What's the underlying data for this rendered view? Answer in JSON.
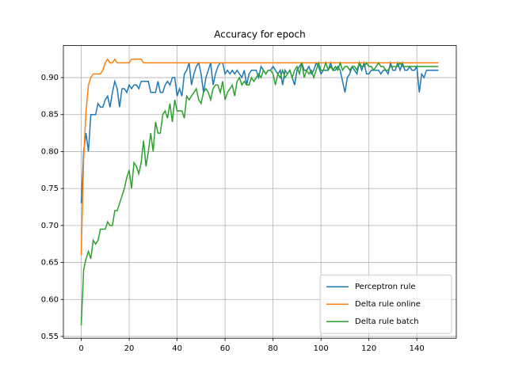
{
  "chart_data": {
    "type": "line",
    "title": "Accuracy for epoch",
    "x": [
      0,
      1,
      2,
      3,
      4,
      5,
      6,
      7,
      8,
      9,
      10,
      11,
      12,
      13,
      14,
      15,
      16,
      17,
      18,
      19,
      20,
      21,
      22,
      23,
      24,
      25,
      26,
      27,
      28,
      29,
      30,
      31,
      32,
      33,
      34,
      35,
      36,
      37,
      38,
      39,
      40,
      41,
      42,
      43,
      44,
      45,
      46,
      47,
      48,
      49,
      50,
      51,
      52,
      53,
      54,
      55,
      56,
      57,
      58,
      59,
      60,
      61,
      62,
      63,
      64,
      65,
      66,
      67,
      68,
      69,
      70,
      71,
      72,
      73,
      74,
      75,
      76,
      77,
      78,
      79,
      80,
      81,
      82,
      83,
      84,
      85,
      86,
      87,
      88,
      89,
      90,
      91,
      92,
      93,
      94,
      95,
      96,
      97,
      98,
      99,
      100,
      101,
      102,
      103,
      104,
      105,
      106,
      107,
      108,
      109,
      110,
      111,
      112,
      113,
      114,
      115,
      116,
      117,
      118,
      119,
      120,
      121,
      122,
      123,
      124,
      125,
      126,
      127,
      128,
      129,
      130,
      131,
      132,
      133,
      134,
      135,
      136,
      137,
      138,
      139,
      140,
      141,
      142,
      143,
      144,
      145,
      146,
      147,
      148,
      149
    ],
    "series": [
      {
        "name": "Perceptron rule",
        "color": "#1f77b4",
        "values": [
          0.73,
          0.8,
          0.825,
          0.8,
          0.85,
          0.85,
          0.85,
          0.865,
          0.86,
          0.86,
          0.87,
          0.875,
          0.86,
          0.88,
          0.895,
          0.885,
          0.86,
          0.885,
          0.885,
          0.88,
          0.89,
          0.885,
          0.89,
          0.89,
          0.885,
          0.895,
          0.895,
          0.895,
          0.895,
          0.88,
          0.88,
          0.88,
          0.895,
          0.88,
          0.88,
          0.89,
          0.895,
          0.89,
          0.9,
          0.9,
          0.875,
          0.885,
          0.875,
          0.905,
          0.91,
          0.92,
          0.89,
          0.905,
          0.915,
          0.92,
          0.905,
          0.88,
          0.9,
          0.91,
          0.92,
          0.89,
          0.905,
          0.915,
          0.92,
          0.92,
          0.905,
          0.91,
          0.905,
          0.91,
          0.905,
          0.91,
          0.905,
          0.9,
          0.91,
          0.89,
          0.905,
          0.91,
          0.91,
          0.91,
          0.9,
          0.915,
          0.91,
          0.905,
          0.91,
          0.91,
          0.915,
          0.91,
          0.905,
          0.91,
          0.89,
          0.91,
          0.905,
          0.91,
          0.9,
          0.89,
          0.91,
          0.915,
          0.92,
          0.91,
          0.91,
          0.915,
          0.905,
          0.91,
          0.92,
          0.915,
          0.905,
          0.91,
          0.91,
          0.91,
          0.92,
          0.91,
          0.91,
          0.915,
          0.91,
          0.895,
          0.88,
          0.9,
          0.905,
          0.915,
          0.91,
          0.905,
          0.92,
          0.91,
          0.92,
          0.905,
          0.905,
          0.91,
          0.91,
          0.91,
          0.91,
          0.905,
          0.91,
          0.91,
          0.905,
          0.92,
          0.91,
          0.91,
          0.92,
          0.91,
          0.92,
          0.91,
          0.91,
          0.915,
          0.91,
          0.91,
          0.915,
          0.88,
          0.905,
          0.9,
          0.91,
          0.91,
          0.91,
          0.91,
          0.91,
          0.91
        ]
      },
      {
        "name": "Delta rule online",
        "color": "#ff7f0e",
        "values": [
          0.66,
          0.79,
          0.855,
          0.89,
          0.9,
          0.905,
          0.905,
          0.905,
          0.905,
          0.91,
          0.92,
          0.925,
          0.92,
          0.92,
          0.925,
          0.92,
          0.92,
          0.92,
          0.92,
          0.92,
          0.92,
          0.925,
          0.925,
          0.925,
          0.925,
          0.925,
          0.92,
          0.92,
          0.92,
          0.92,
          0.92,
          0.92,
          0.92,
          0.92,
          0.92,
          0.92,
          0.92,
          0.92,
          0.92,
          0.92,
          0.92,
          0.92,
          0.92,
          0.92,
          0.92,
          0.92,
          0.92,
          0.92,
          0.92,
          0.92,
          0.92,
          0.92,
          0.92,
          0.92,
          0.92,
          0.92,
          0.92,
          0.92,
          0.92,
          0.92,
          0.92,
          0.92,
          0.92,
          0.92,
          0.92,
          0.92,
          0.92,
          0.92,
          0.92,
          0.92,
          0.92,
          0.92,
          0.92,
          0.92,
          0.92,
          0.92,
          0.92,
          0.92,
          0.92,
          0.92,
          0.92,
          0.92,
          0.92,
          0.92,
          0.92,
          0.92,
          0.92,
          0.92,
          0.92,
          0.92,
          0.92,
          0.92,
          0.92,
          0.92,
          0.92,
          0.92,
          0.92,
          0.92,
          0.92,
          0.92,
          0.92,
          0.92,
          0.92,
          0.92,
          0.92,
          0.92,
          0.92,
          0.92,
          0.92,
          0.92,
          0.92,
          0.92,
          0.92,
          0.92,
          0.92,
          0.92,
          0.92,
          0.92,
          0.92,
          0.92,
          0.92,
          0.92,
          0.92,
          0.92,
          0.92,
          0.92,
          0.92,
          0.92,
          0.92,
          0.92,
          0.92,
          0.92,
          0.92,
          0.92,
          0.92,
          0.92,
          0.92,
          0.92,
          0.92,
          0.92,
          0.92,
          0.92,
          0.92,
          0.92,
          0.92,
          0.92,
          0.92,
          0.92,
          0.92,
          0.92
        ]
      },
      {
        "name": "Delta rule batch",
        "color": "#2ca02c",
        "values": [
          0.565,
          0.64,
          0.655,
          0.665,
          0.655,
          0.68,
          0.675,
          0.68,
          0.695,
          0.695,
          0.695,
          0.705,
          0.7,
          0.7,
          0.72,
          0.72,
          0.73,
          0.74,
          0.75,
          0.765,
          0.775,
          0.75,
          0.785,
          0.78,
          0.77,
          0.785,
          0.815,
          0.78,
          0.8,
          0.825,
          0.8,
          0.84,
          0.825,
          0.825,
          0.85,
          0.855,
          0.845,
          0.865,
          0.84,
          0.87,
          0.855,
          0.855,
          0.855,
          0.845,
          0.875,
          0.87,
          0.875,
          0.88,
          0.885,
          0.87,
          0.865,
          0.88,
          0.885,
          0.88,
          0.87,
          0.885,
          0.89,
          0.89,
          0.88,
          0.895,
          0.87,
          0.88,
          0.885,
          0.89,
          0.875,
          0.895,
          0.9,
          0.89,
          0.895,
          0.89,
          0.89,
          0.9,
          0.895,
          0.9,
          0.905,
          0.9,
          0.91,
          0.905,
          0.91,
          0.91,
          0.905,
          0.89,
          0.905,
          0.9,
          0.91,
          0.9,
          0.905,
          0.91,
          0.9,
          0.91,
          0.915,
          0.905,
          0.92,
          0.9,
          0.91,
          0.905,
          0.91,
          0.9,
          0.91,
          0.92,
          0.91,
          0.91,
          0.92,
          0.91,
          0.915,
          0.91,
          0.915,
          0.91,
          0.92,
          0.91,
          0.915,
          0.915,
          0.91,
          0.915,
          0.915,
          0.91,
          0.92,
          0.915,
          0.915,
          0.92,
          0.915,
          0.915,
          0.91,
          0.915,
          0.92,
          0.915,
          0.915,
          0.91,
          0.91,
          0.915,
          0.915,
          0.915,
          0.915,
          0.92,
          0.915,
          0.915,
          0.915,
          0.915,
          0.915,
          0.915,
          0.915,
          0.915,
          0.915,
          0.915,
          0.915,
          0.915,
          0.915,
          0.915,
          0.915,
          0.915
        ]
      }
    ],
    "xlim": [
      -7.45,
      156.45
    ],
    "xticks": [
      0,
      20,
      40,
      60,
      80,
      100,
      120,
      140
    ],
    "ylim": [
      0.5476,
      0.9433
    ],
    "yticks": [
      0.55,
      {
        "value": 0.6,
        "label": "0.60"
      },
      0.65,
      {
        "value": 0.7,
        "label": "0.70"
      },
      0.75,
      {
        "value": 0.8,
        "label": "0.80"
      },
      0.85,
      {
        "value": 0.9,
        "label": "0.90"
      }
    ],
    "grid": true,
    "legend": "lower right"
  }
}
